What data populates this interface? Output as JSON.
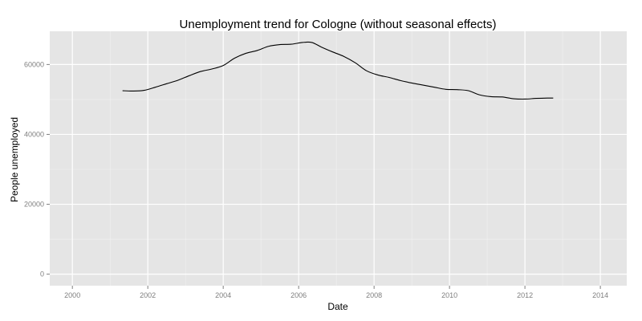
{
  "chart_data": {
    "type": "line",
    "title": "Unemployment trend for Cologne (without seasonal effects)",
    "xlabel": "Date",
    "ylabel": "People unemployed",
    "xlim": [
      1999.4,
      2014.7
    ],
    "ylim": [
      -3300,
      69500
    ],
    "x_ticks": [
      2000,
      2002,
      2004,
      2006,
      2008,
      2010,
      2012,
      2014
    ],
    "x_tick_labels": [
      "2000",
      "2002",
      "2004",
      "2006",
      "2008",
      "2010",
      "2012",
      "2014"
    ],
    "y_ticks": [
      0,
      20000,
      40000,
      60000
    ],
    "y_tick_labels": [
      "0",
      "20000",
      "40000",
      "60000"
    ],
    "grid": true,
    "series": [
      {
        "x": [
          2001.33,
          2001.6,
          2001.9,
          2002.2,
          2002.5,
          2002.8,
          2003.1,
          2003.4,
          2003.7,
          2004.0,
          2004.3,
          2004.6,
          2004.9,
          2005.2,
          2005.5,
          2005.8,
          2006.1,
          2006.35,
          2006.6,
          2006.9,
          2007.2,
          2007.5,
          2007.8,
          2008.1,
          2008.4,
          2008.7,
          2009.0,
          2009.3,
          2009.6,
          2009.9,
          2010.2,
          2010.5,
          2010.8,
          2011.1,
          2011.4,
          2011.7,
          2012.0,
          2012.3,
          2012.6,
          2012.75
        ],
        "y": [
          52500,
          52400,
          52600,
          53500,
          54500,
          55500,
          56800,
          58000,
          58700,
          59700,
          61800,
          63200,
          64000,
          65200,
          65700,
          65800,
          66300,
          66300,
          65000,
          63600,
          62300,
          60500,
          58200,
          57000,
          56300,
          55400,
          54700,
          54100,
          53500,
          52900,
          52800,
          52500,
          51300,
          50800,
          50700,
          50200,
          50100,
          50300,
          50400,
          50400
        ],
        "color": "#000000"
      }
    ],
    "colors": {
      "background": "#ffffff",
      "panel": "#e5e5e5",
      "grid_major": "#ffffff",
      "grid_minor": "#f2f2f2",
      "line": "#000000",
      "tick_label": "#7f7f7f"
    }
  }
}
